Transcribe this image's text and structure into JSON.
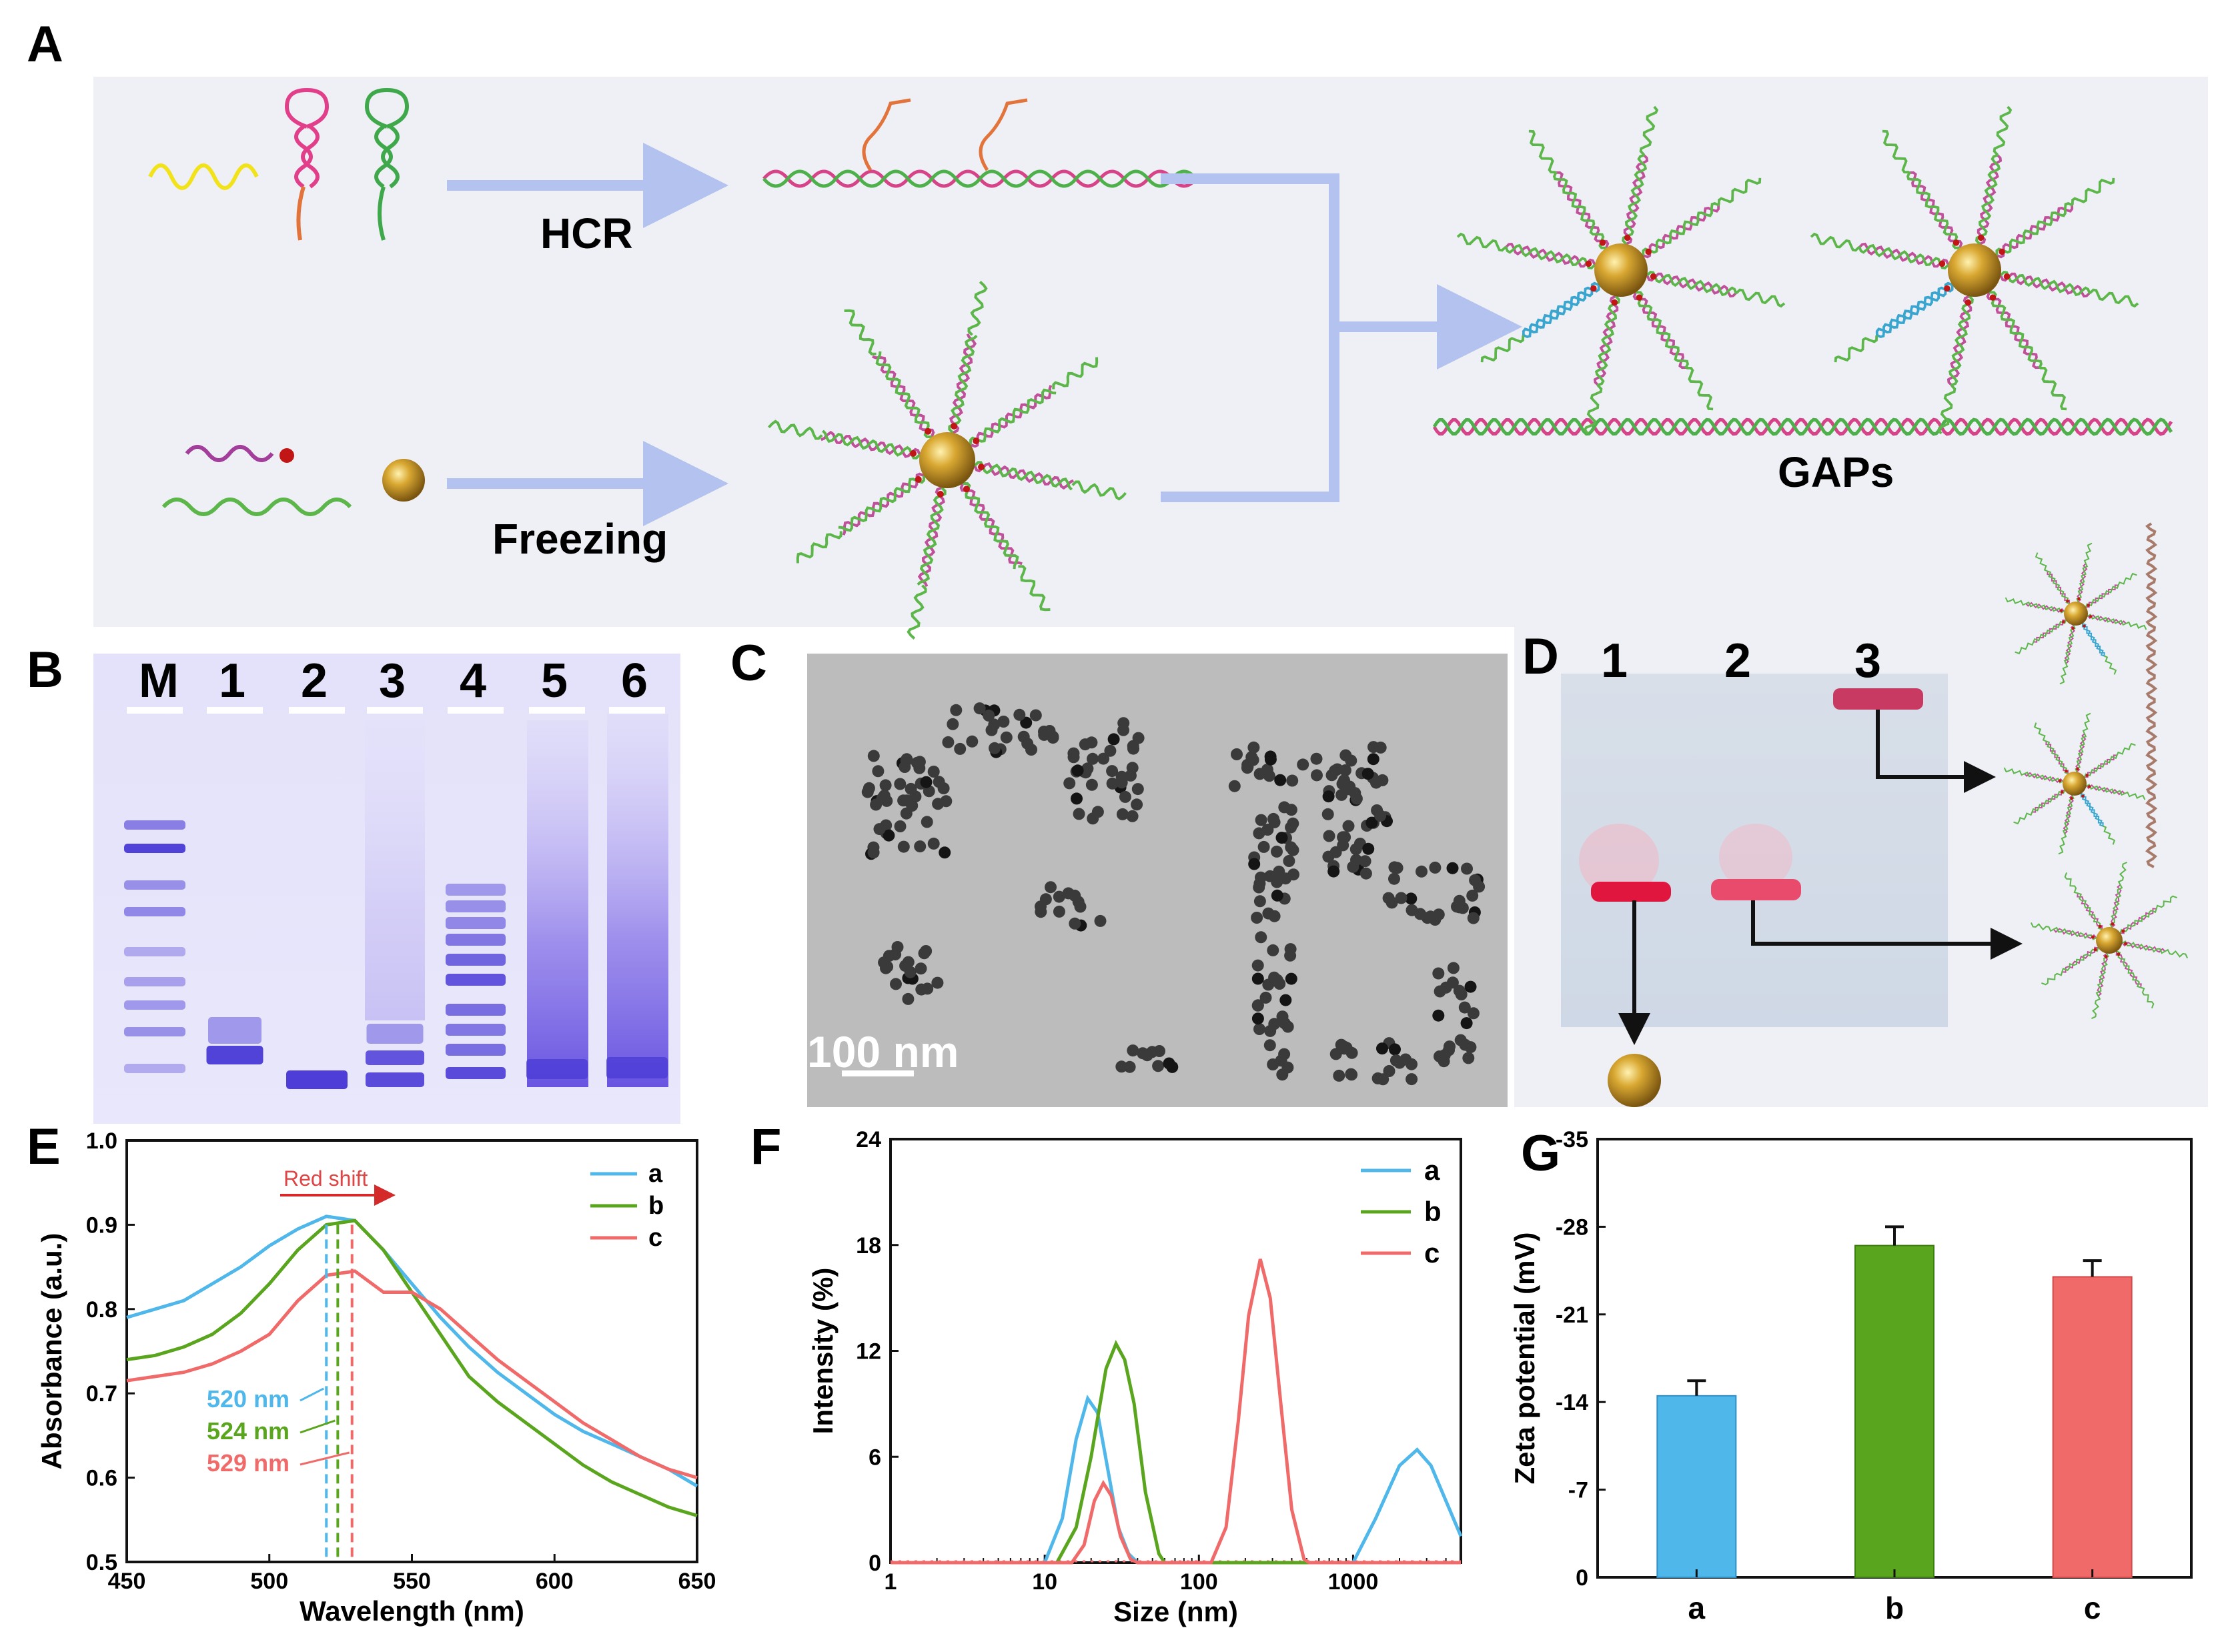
{
  "colors": {
    "panel_bg": "#eef0f5",
    "arrow": "#b3c2ee",
    "gold": "#c99a2b",
    "series_a": "#4fb7ea",
    "series_b": "#5aa51e",
    "series_c": "#f06a6a",
    "gel_band": "#4a3ad6"
  },
  "panelA": {
    "label": "A",
    "hcr_label": "HCR",
    "freezing_label": "Freezing",
    "gaps_label": "GAPs"
  },
  "panelB": {
    "label": "B",
    "lanes": [
      "M",
      "1",
      "2",
      "3",
      "4",
      "5",
      "6"
    ]
  },
  "panelC": {
    "label": "C",
    "scale_bar": "100 nm"
  },
  "panelD": {
    "label": "D",
    "lanes": [
      "1",
      "2",
      "3"
    ]
  },
  "chart_data": [
    {
      "panel": "E",
      "type": "line",
      "xlabel": "Wavelength (nm)",
      "ylabel": "Absorbance (a.u.)",
      "xlim": [
        450,
        650
      ],
      "ylim": [
        0.5,
        1.0
      ],
      "xticks": [
        "450",
        "500",
        "550",
        "600",
        "650"
      ],
      "yticks": [
        "0.5",
        "0.6",
        "0.7",
        "0.8",
        "0.9",
        "1.0"
      ],
      "annotation": "Red shift",
      "peak_labels": [
        "520 nm",
        "524 nm",
        "529 nm"
      ],
      "peaks": [
        520,
        524,
        529
      ],
      "legend": [
        "a",
        "b",
        "c"
      ],
      "series": [
        {
          "name": "a",
          "x": [
            450,
            460,
            470,
            480,
            490,
            500,
            510,
            520,
            530,
            540,
            550,
            560,
            570,
            580,
            590,
            600,
            610,
            620,
            630,
            640,
            650
          ],
          "y": [
            0.79,
            0.8,
            0.81,
            0.83,
            0.85,
            0.875,
            0.895,
            0.91,
            0.905,
            0.87,
            0.83,
            0.79,
            0.755,
            0.725,
            0.7,
            0.675,
            0.655,
            0.64,
            0.625,
            0.61,
            0.59
          ]
        },
        {
          "name": "b",
          "x": [
            450,
            460,
            470,
            480,
            490,
            500,
            510,
            520,
            530,
            540,
            550,
            560,
            570,
            580,
            590,
            600,
            610,
            620,
            630,
            640,
            650
          ],
          "y": [
            0.74,
            0.745,
            0.755,
            0.77,
            0.795,
            0.83,
            0.87,
            0.9,
            0.905,
            0.87,
            0.82,
            0.77,
            0.72,
            0.69,
            0.665,
            0.64,
            0.615,
            0.595,
            0.58,
            0.565,
            0.555
          ]
        },
        {
          "name": "c",
          "x": [
            450,
            460,
            470,
            480,
            490,
            500,
            510,
            520,
            530,
            540,
            550,
            560,
            570,
            580,
            590,
            600,
            610,
            620,
            630,
            640,
            650
          ],
          "y": [
            0.715,
            0.72,
            0.725,
            0.735,
            0.75,
            0.77,
            0.81,
            0.84,
            0.845,
            0.82,
            0.82,
            0.8,
            0.77,
            0.74,
            0.715,
            0.69,
            0.665,
            0.645,
            0.625,
            0.61,
            0.6
          ]
        }
      ]
    },
    {
      "panel": "F",
      "type": "line",
      "xscale": "log",
      "xlabel": "Size (nm)",
      "ylabel": "Intensity (%)",
      "xlim": [
        1,
        5000
      ],
      "ylim": [
        0,
        24
      ],
      "xticks": [
        "1",
        "10",
        "100",
        "1000"
      ],
      "yticks": [
        "0",
        "6",
        "12",
        "18",
        "24"
      ],
      "legend": [
        "a",
        "b",
        "c"
      ],
      "series": [
        {
          "name": "a",
          "x": [
            1,
            10,
            13,
            16,
            19,
            22,
            26,
            30,
            35,
            40,
            1000,
            1400,
            2000,
            2600,
            3200,
            4000,
            5000
          ],
          "y": [
            0,
            0,
            2.5,
            7,
            9.3,
            8.5,
            5,
            2,
            0.5,
            0,
            0,
            2.5,
            5.5,
            6.4,
            5.5,
            3.5,
            1.5
          ]
        },
        {
          "name": "b",
          "x": [
            1,
            12,
            16,
            20,
            25,
            29,
            33,
            38,
            45,
            55,
            60,
            5000
          ],
          "y": [
            0,
            0,
            2,
            6,
            11,
            12.4,
            11.5,
            9,
            4,
            0.5,
            0,
            0
          ]
        },
        {
          "name": "c",
          "x": [
            1,
            15,
            18,
            21,
            24,
            27,
            31,
            36,
            40,
            120,
            150,
            180,
            210,
            250,
            290,
            340,
            400,
            480,
            520,
            5000
          ],
          "y": [
            0,
            0,
            1,
            3.5,
            4.5,
            3.8,
            1.5,
            0.2,
            0,
            0,
            2,
            8,
            14,
            17.2,
            15,
            9,
            3,
            0.2,
            0,
            0
          ]
        }
      ]
    },
    {
      "panel": "G",
      "type": "bar",
      "xlabel": "",
      "ylabel": "Zeta potential (mV)",
      "categories": [
        "a",
        "b",
        "c"
      ],
      "values": [
        -14.5,
        -26.5,
        -24.0
      ],
      "errors": [
        1.2,
        1.5,
        1.3
      ],
      "ylim": [
        0,
        -35
      ],
      "yticks": [
        "0",
        "-7",
        "-14",
        "-21",
        "-28",
        "-35"
      ]
    }
  ]
}
